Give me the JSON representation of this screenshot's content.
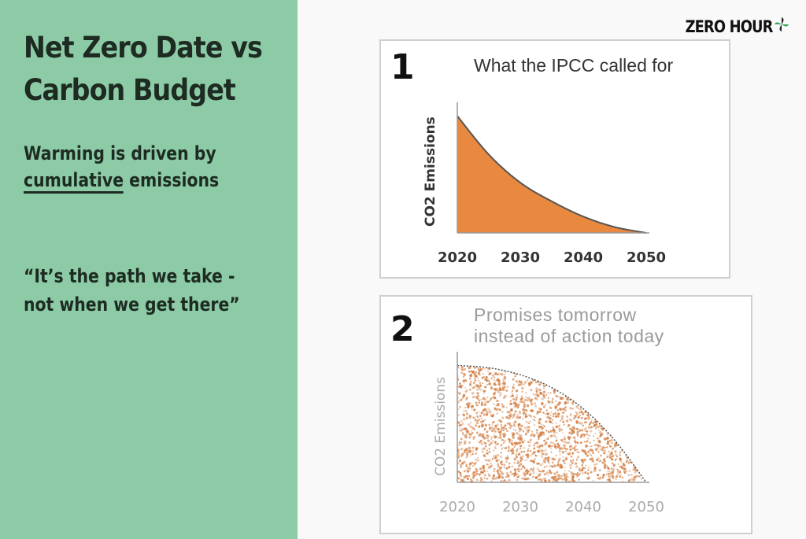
{
  "colors": {
    "left_bg": "#8ccba6",
    "text_dark": "#1d2b22",
    "fill_orange": "#e8893f",
    "curve": "#555555",
    "speckle": "#d27a3c",
    "logo_leaf": "#3aa35a"
  },
  "slide": {
    "title": "Net Zero Date vs Carbon Budget",
    "subtitle_line1": "Warming is driven by",
    "subtitle_underlined": "cumulative",
    "subtitle_rest": " emissions",
    "quote_line1": "“It’s the path we take -",
    "quote_line2": "not when we get there”"
  },
  "logo": {
    "text": "ZERO HOUR",
    "icon": "pinwheel-icon"
  },
  "chart_data": [
    {
      "number": "1",
      "type": "area",
      "title": "What the IPCC called for",
      "ylabel": "CO2 Emissions",
      "categories": [
        "2020",
        "2030",
        "2040",
        "2050"
      ],
      "x": [
        2020,
        2025,
        2030,
        2035,
        2040,
        2045,
        2050
      ],
      "values": [
        100,
        67,
        43,
        27,
        14,
        5,
        0
      ],
      "fill": "solid",
      "xlim": [
        2020,
        2050
      ],
      "ylim": [
        0,
        105
      ]
    },
    {
      "number": "2",
      "type": "area",
      "title": "Promises tomorrow instead of action today",
      "title_line1": "Promises tomorrow",
      "title_line2": "instead of action today",
      "ylabel": "CO2 Emissions",
      "categories": [
        "2020",
        "2030",
        "2040",
        "2050"
      ],
      "x": [
        2020,
        2025,
        2030,
        2035,
        2040,
        2045,
        2050
      ],
      "values": [
        100,
        98,
        92,
        81,
        63,
        36,
        0
      ],
      "fill": "speckled",
      "xlim": [
        2020,
        2050
      ],
      "ylim": [
        0,
        105
      ]
    }
  ]
}
